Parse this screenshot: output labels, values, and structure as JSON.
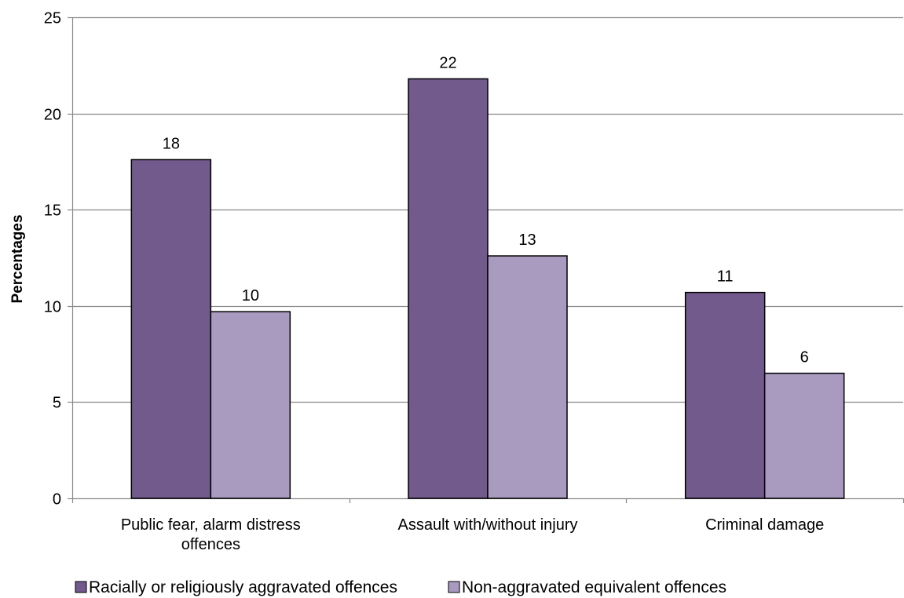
{
  "chart_data": {
    "type": "bar",
    "title": "",
    "xlabel": "",
    "ylabel": "Percentages",
    "ylim": [
      0,
      25
    ],
    "yticks": [
      0,
      5,
      10,
      15,
      20,
      25
    ],
    "grid": true,
    "legend_position": "bottom",
    "categories": [
      [
        "Public fear, alarm distress",
        "offences"
      ],
      [
        "Assault with/without injury"
      ],
      [
        "Criminal damage"
      ]
    ],
    "series": [
      {
        "name": "Racially or religiously aggravated offences",
        "color": "#725a8c",
        "values": [
          17.6,
          21.8,
          10.7
        ],
        "labels": [
          "18",
          "22",
          "11"
        ]
      },
      {
        "name": "Non-aggravated equivalent offences",
        "color": "#a89bbf",
        "values": [
          9.7,
          12.6,
          6.5
        ],
        "labels": [
          "10",
          "13",
          "6"
        ]
      }
    ]
  }
}
